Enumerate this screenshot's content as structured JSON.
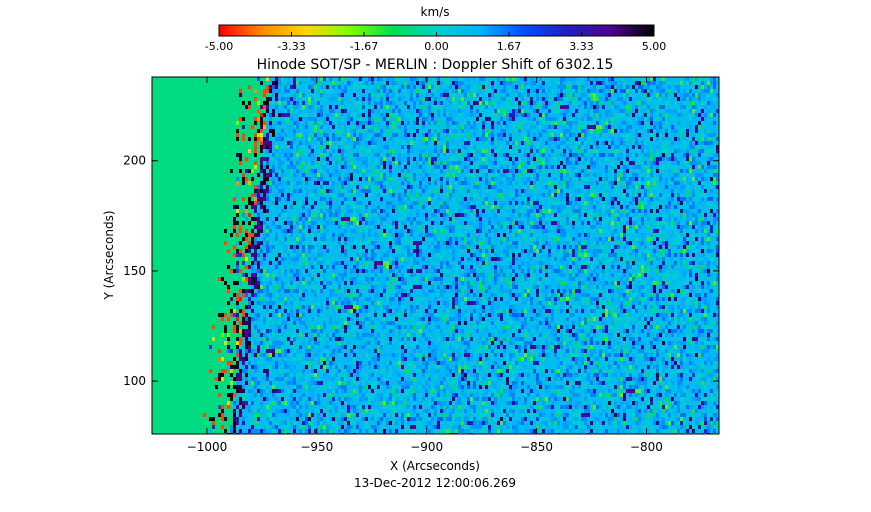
{
  "chart_data": {
    "type": "heatmap",
    "title": "Hinode SOT/SP - MERLIN : Doppler Shift of 6302.15",
    "xlabel": "X (Arcseconds)",
    "ylabel": "Y (Arcseconds)",
    "footer": "13-Dec-2012 12:00:06.269",
    "xlim": [
      -1025,
      -767
    ],
    "ylim": [
      76,
      238
    ],
    "x_ticks": [
      -1000,
      -950,
      -900,
      -850,
      -800
    ],
    "y_ticks": [
      100,
      150,
      200
    ],
    "limb_x": {
      "y_low": -990,
      "y_high": -972
    },
    "off_disk_value": -0.6,
    "disk_typical_value": 0.8,
    "colorbar": {
      "label": "km/s",
      "range": [
        -5.0,
        5.0
      ],
      "ticks": [
        "-5.00",
        "-3.33",
        "-1.67",
        "0.00",
        "1.67",
        "3.33",
        "5.00"
      ],
      "colors": [
        "#ff0000",
        "#ff8c00",
        "#ffd700",
        "#7fff00",
        "#00e050",
        "#00d0c8",
        "#00b4ff",
        "#0050ff",
        "#2020c0",
        "#500090",
        "#000000"
      ]
    }
  }
}
